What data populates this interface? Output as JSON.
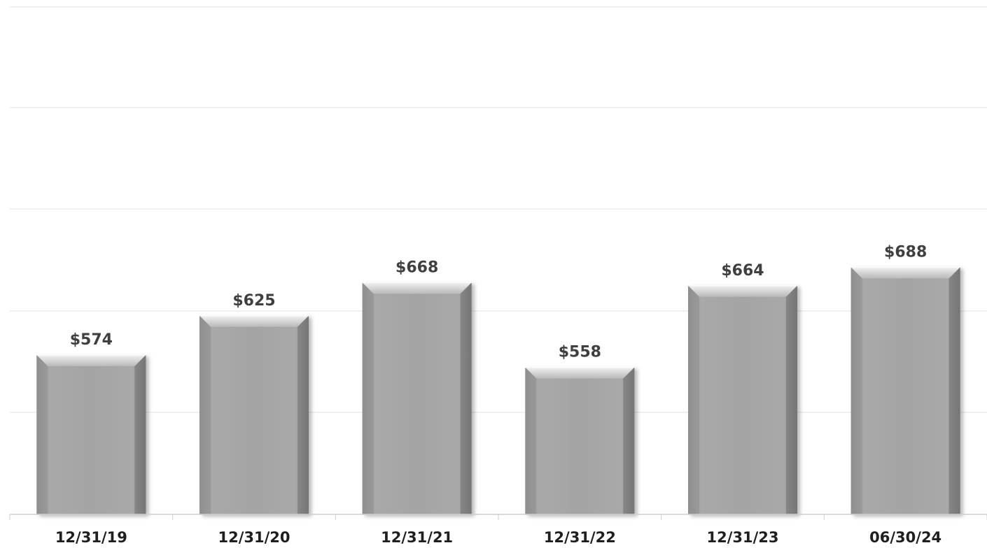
{
  "chart_data": {
    "type": "bar",
    "categories": [
      "12/31/19",
      "12/31/20",
      "12/31/21",
      "12/31/22",
      "12/31/23",
      "06/30/24"
    ],
    "values": [
      574,
      625,
      668,
      558,
      664,
      688
    ],
    "value_labels": [
      "$574",
      "$625",
      "$668",
      "$558",
      "$664",
      "$688"
    ],
    "title": "",
    "xlabel": "",
    "ylabel": "",
    "ylim": [
      367,
      701
    ],
    "grid": true,
    "legend": "none",
    "colors": {
      "bar": "#a6a6a6",
      "bar_light": "#e6e6e6",
      "bar_dark": "#7d7d7d",
      "label": "#3f3f3f",
      "tick_label": "#1f1f1f",
      "grid": "#e2e2e2"
    }
  }
}
